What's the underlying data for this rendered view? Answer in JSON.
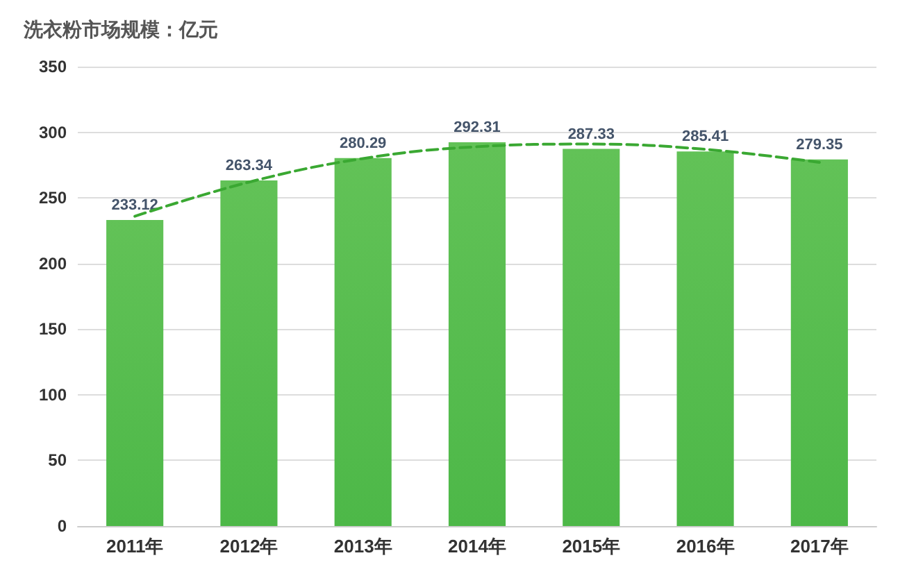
{
  "chart_data": {
    "type": "bar",
    "title": "洗衣粉市场规模：亿元",
    "categories": [
      "2011年",
      "2012年",
      "2013年",
      "2014年",
      "2015年",
      "2016年",
      "2017年"
    ],
    "series": [
      {
        "color": "#4db848",
        "values": [
          233.12,
          263.34,
          280.29,
          292.31,
          287.33,
          285.41,
          279.35
        ],
        "value_labels": [
          "233.12",
          "263.34",
          "280.29",
          "292.31",
          "287.33",
          "285.41",
          "279.35"
        ]
      },
      {
        "type": "line",
        "color": "#3aa832",
        "line_style": "dashed",
        "marker": "none",
        "x": [
          "2011年",
          "2012年",
          "2013年",
          "2014年",
          "2015年",
          "2016年",
          "2017年"
        ],
        "values": [
          236,
          262,
          280,
          289,
          291,
          287,
          277
        ]
      }
    ],
    "ylim": [
      0,
      350
    ],
    "yticks": [
      0,
      50,
      100,
      150,
      200,
      250,
      300,
      350
    ],
    "grid": "y"
  }
}
